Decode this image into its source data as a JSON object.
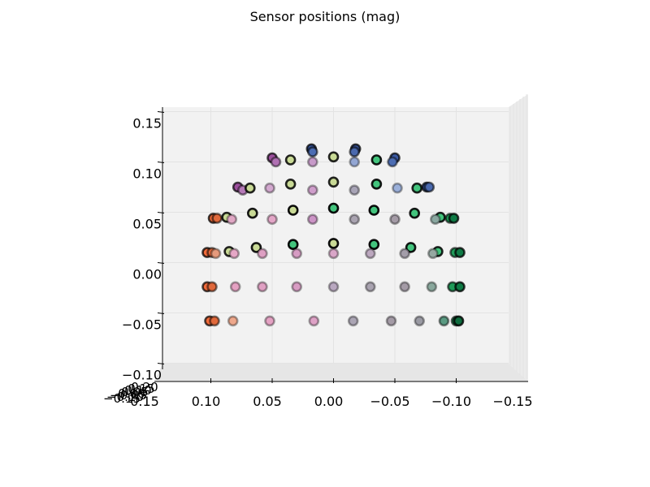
{
  "chart_data": {
    "type": "scatter",
    "title": "Sensor positions (mag)",
    "projection": "3d",
    "view": "front (looking along y axis)",
    "xlabel": "",
    "ylabel": "",
    "zlabel": "",
    "xlim": [
      0.15,
      -0.15
    ],
    "zlim": [
      -0.1,
      0.15
    ],
    "x_ticks": [
      "0.15",
      "0.10",
      "0.05",
      "0.00",
      "−0.05",
      "−0.10",
      "−0.15"
    ],
    "z_ticks": [
      "0.15",
      "0.10",
      "0.05",
      "0.00",
      "−0.05",
      "−0.10"
    ],
    "y_ticks_compressed": [
      "0.20",
      "0.15",
      "0.10",
      "0.05",
      "0.00",
      "−0.05",
      "−0.10",
      "−0.15"
    ],
    "grid": true,
    "marker_edge": "#000000",
    "pane_color": "#f2f2f2",
    "grid_color": "#e3e3e3",
    "series": [
      {
        "points": [
          {
            "x": 0.018,
            "z": 0.113,
            "color": "#3b5aa3",
            "edge_alpha": 0.75
          },
          {
            "x": 0.017,
            "z": 0.11,
            "color": "#4c6db3",
            "edge_alpha": 0.55
          },
          {
            "x": -0.018,
            "z": 0.113,
            "color": "#3a58a0",
            "edge_alpha": 0.75
          },
          {
            "x": -0.017,
            "z": 0.11,
            "color": "#4a69ae",
            "edge_alpha": 0.55
          },
          {
            "x": 0.05,
            "z": 0.104,
            "color": "#9b4f9c",
            "edge_alpha": 0.7
          },
          {
            "x": 0.047,
            "z": 0.1,
            "color": "#b071b3",
            "edge_alpha": 0.45
          },
          {
            "x": 0.035,
            "z": 0.102,
            "color": "#c9da96",
            "edge_alpha": 0.85
          },
          {
            "x": 0.0,
            "z": 0.105,
            "color": "#c9da96",
            "edge_alpha": 0.85
          },
          {
            "x": -0.035,
            "z": 0.102,
            "color": "#43c47d",
            "edge_alpha": 0.9
          },
          {
            "x": 0.017,
            "z": 0.1,
            "color": "#c79ac9",
            "edge_alpha": 0.35
          },
          {
            "x": -0.017,
            "z": 0.1,
            "color": "#93a6d3",
            "edge_alpha": 0.35
          },
          {
            "x": -0.05,
            "z": 0.104,
            "color": "#3b5aa3",
            "edge_alpha": 0.7
          },
          {
            "x": -0.048,
            "z": 0.1,
            "color": "#4d6db3",
            "edge_alpha": 0.45
          },
          {
            "x": 0.078,
            "z": 0.075,
            "color": "#9b4f9c",
            "edge_alpha": 0.7
          },
          {
            "x": 0.074,
            "z": 0.072,
            "color": "#b67ab8",
            "edge_alpha": 0.45
          },
          {
            "x": 0.068,
            "z": 0.074,
            "color": "#c9da96",
            "edge_alpha": 0.85
          },
          {
            "x": 0.035,
            "z": 0.078,
            "color": "#c9da96",
            "edge_alpha": 0.85
          },
          {
            "x": 0.0,
            "z": 0.08,
            "color": "#c9da96",
            "edge_alpha": 0.85
          },
          {
            "x": -0.035,
            "z": 0.078,
            "color": "#43c47d",
            "edge_alpha": 0.9
          },
          {
            "x": 0.052,
            "z": 0.074,
            "color": "#d3a9cf",
            "edge_alpha": 0.35
          },
          {
            "x": 0.017,
            "z": 0.072,
            "color": "#cf9ecb",
            "edge_alpha": 0.35
          },
          {
            "x": -0.017,
            "z": 0.072,
            "color": "#a8a4b6",
            "edge_alpha": 0.35
          },
          {
            "x": -0.052,
            "z": 0.074,
            "color": "#9bb0da",
            "edge_alpha": 0.35
          },
          {
            "x": -0.068,
            "z": 0.074,
            "color": "#43c47d",
            "edge_alpha": 0.85
          },
          {
            "x": -0.076,
            "z": 0.075,
            "color": "#3b5aa3",
            "edge_alpha": 0.7
          },
          {
            "x": -0.078,
            "z": 0.075,
            "color": "#4a69ae",
            "edge_alpha": 0.55
          },
          {
            "x": 0.098,
            "z": 0.044,
            "color": "#f26b3a",
            "edge_alpha": 0.75
          },
          {
            "x": 0.095,
            "z": 0.044,
            "color": "#e0683b",
            "edge_alpha": 0.55
          },
          {
            "x": 0.087,
            "z": 0.045,
            "color": "#c9da96",
            "edge_alpha": 0.85
          },
          {
            "x": 0.066,
            "z": 0.049,
            "color": "#c9da96",
            "edge_alpha": 0.9
          },
          {
            "x": 0.033,
            "z": 0.052,
            "color": "#c9da96",
            "edge_alpha": 0.95
          },
          {
            "x": 0.0,
            "z": 0.054,
            "color": "#43c47d",
            "edge_alpha": 0.95
          },
          {
            "x": -0.033,
            "z": 0.052,
            "color": "#43c47d",
            "edge_alpha": 0.95
          },
          {
            "x": -0.066,
            "z": 0.049,
            "color": "#43c47d",
            "edge_alpha": 0.9
          },
          {
            "x": -0.087,
            "z": 0.045,
            "color": "#43c47d",
            "edge_alpha": 0.85
          },
          {
            "x": -0.095,
            "z": 0.044,
            "color": "#1f9a58",
            "edge_alpha": 0.6
          },
          {
            "x": -0.098,
            "z": 0.044,
            "color": "#0f7a45",
            "edge_alpha": 0.75
          },
          {
            "x": 0.083,
            "z": 0.043,
            "color": "#e0a7c4",
            "edge_alpha": 0.35
          },
          {
            "x": 0.05,
            "z": 0.043,
            "color": "#e3a6c7",
            "edge_alpha": 0.35
          },
          {
            "x": 0.017,
            "z": 0.043,
            "color": "#cc94c6",
            "edge_alpha": 0.35
          },
          {
            "x": -0.017,
            "z": 0.043,
            "color": "#a9a3b0",
            "edge_alpha": 0.35
          },
          {
            "x": -0.05,
            "z": 0.043,
            "color": "#a49ba6",
            "edge_alpha": 0.35
          },
          {
            "x": -0.083,
            "z": 0.043,
            "color": "#8aa7a0",
            "edge_alpha": 0.35
          },
          {
            "x": 0.103,
            "z": 0.01,
            "color": "#f26b3a",
            "edge_alpha": 0.75
          },
          {
            "x": 0.099,
            "z": 0.01,
            "color": "#e0683b",
            "edge_alpha": 0.55
          },
          {
            "x": 0.085,
            "z": 0.011,
            "color": "#c9da96",
            "edge_alpha": 0.85
          },
          {
            "x": 0.063,
            "z": 0.015,
            "color": "#c9da96",
            "edge_alpha": 0.9
          },
          {
            "x": 0.033,
            "z": 0.018,
            "color": "#43c47d",
            "edge_alpha": 0.95
          },
          {
            "x": 0.0,
            "z": 0.019,
            "color": "#c9da96",
            "edge_alpha": 0.95
          },
          {
            "x": -0.033,
            "z": 0.018,
            "color": "#43c47d",
            "edge_alpha": 0.95
          },
          {
            "x": -0.063,
            "z": 0.015,
            "color": "#43c47d",
            "edge_alpha": 0.9
          },
          {
            "x": -0.085,
            "z": 0.011,
            "color": "#43c47d",
            "edge_alpha": 0.85
          },
          {
            "x": -0.099,
            "z": 0.01,
            "color": "#1f9a58",
            "edge_alpha": 0.6
          },
          {
            "x": -0.103,
            "z": 0.01,
            "color": "#0f7a45",
            "edge_alpha": 0.75
          },
          {
            "x": 0.096,
            "z": 0.009,
            "color": "#e59a7c",
            "edge_alpha": 0.35
          },
          {
            "x": 0.081,
            "z": 0.009,
            "color": "#e6a7c6",
            "edge_alpha": 0.35
          },
          {
            "x": 0.058,
            "z": 0.009,
            "color": "#dea0c3",
            "edge_alpha": 0.35
          },
          {
            "x": 0.03,
            "z": 0.009,
            "color": "#d69cc3",
            "edge_alpha": 0.35
          },
          {
            "x": 0.0,
            "z": 0.009,
            "color": "#d9a6c8",
            "edge_alpha": 0.35
          },
          {
            "x": -0.03,
            "z": 0.009,
            "color": "#bca8bf",
            "edge_alpha": 0.35
          },
          {
            "x": -0.058,
            "z": 0.009,
            "color": "#a39da9",
            "edge_alpha": 0.35
          },
          {
            "x": -0.081,
            "z": 0.009,
            "color": "#95a8a1",
            "edge_alpha": 0.35
          },
          {
            "x": 0.103,
            "z": -0.024,
            "color": "#f26b3a",
            "edge_alpha": 0.7
          },
          {
            "x": 0.099,
            "z": -0.024,
            "color": "#e0683b",
            "edge_alpha": 0.5
          },
          {
            "x": 0.08,
            "z": -0.024,
            "color": "#e4a1c2",
            "edge_alpha": 0.35
          },
          {
            "x": 0.058,
            "z": -0.024,
            "color": "#e0a0c3",
            "edge_alpha": 0.35
          },
          {
            "x": 0.03,
            "z": -0.024,
            "color": "#d89cc3",
            "edge_alpha": 0.35
          },
          {
            "x": 0.0,
            "z": -0.024,
            "color": "#b9a8c0",
            "edge_alpha": 0.35
          },
          {
            "x": -0.03,
            "z": -0.024,
            "color": "#a9a3b0",
            "edge_alpha": 0.35
          },
          {
            "x": -0.058,
            "z": -0.024,
            "color": "#a49ba6",
            "edge_alpha": 0.35
          },
          {
            "x": -0.08,
            "z": -0.024,
            "color": "#89a79c",
            "edge_alpha": 0.35
          },
          {
            "x": -0.097,
            "z": -0.024,
            "color": "#1f9a58",
            "edge_alpha": 0.6
          },
          {
            "x": -0.103,
            "z": -0.024,
            "color": "#0f7a45",
            "edge_alpha": 0.75
          },
          {
            "x": 0.101,
            "z": -0.058,
            "color": "#f26b3a",
            "edge_alpha": 0.7
          },
          {
            "x": 0.097,
            "z": -0.058,
            "color": "#e0683b",
            "edge_alpha": 0.5
          },
          {
            "x": 0.082,
            "z": -0.058,
            "color": "#eea88c",
            "edge_alpha": 0.35
          },
          {
            "x": 0.052,
            "z": -0.058,
            "color": "#e4a2c3",
            "edge_alpha": 0.35
          },
          {
            "x": 0.016,
            "z": -0.058,
            "color": "#dea2c6",
            "edge_alpha": 0.35
          },
          {
            "x": -0.016,
            "z": -0.058,
            "color": "#aba5b4",
            "edge_alpha": 0.35
          },
          {
            "x": -0.047,
            "z": -0.058,
            "color": "#a49ba6",
            "edge_alpha": 0.35
          },
          {
            "x": -0.07,
            "z": -0.058,
            "color": "#9a9aa3",
            "edge_alpha": 0.35
          },
          {
            "x": -0.09,
            "z": -0.058,
            "color": "#5b9a82",
            "edge_alpha": 0.45
          },
          {
            "x": -0.1,
            "z": -0.058,
            "color": "#1d8b53",
            "edge_alpha": 0.6
          },
          {
            "x": -0.102,
            "z": -0.058,
            "color": "#0f6d3f",
            "edge_alpha": 0.8
          }
        ]
      }
    ]
  }
}
